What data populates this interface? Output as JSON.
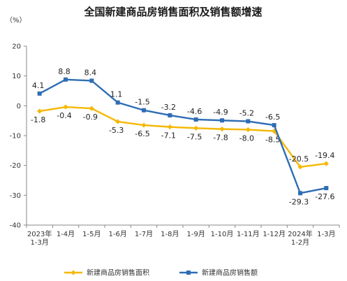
{
  "chart_data": {
    "type": "line",
    "title": "全国新建商品房销售面积及销售额增速",
    "unit_label": "（%）",
    "categories": [
      [
        "2023年",
        "1-3月"
      ],
      [
        "1-4月"
      ],
      [
        "1-5月"
      ],
      [
        "1-6月"
      ],
      [
        "1-7月"
      ],
      [
        "1-8月"
      ],
      [
        "1-9月"
      ],
      [
        "1-10月"
      ],
      [
        "1-11月"
      ],
      [
        "1-12月"
      ],
      [
        "2024年",
        "1-2月"
      ],
      [
        "1-3月"
      ]
    ],
    "ylim": [
      -40,
      20
    ],
    "yticks": [
      20,
      10,
      0,
      -10,
      -20,
      -30,
      -40
    ],
    "ytick_labels": [
      "20",
      "10",
      "0",
      "-10",
      "-20",
      "-30",
      "-40"
    ],
    "grid": false,
    "legend_position": "bottom",
    "series": [
      {
        "name": "新建商品房销售面积",
        "color": "#f5b800",
        "marker": "diamond",
        "values": [
          -1.8,
          -0.4,
          -0.9,
          -5.3,
          -6.5,
          -7.1,
          -7.5,
          -7.8,
          -8.0,
          -8.5,
          -20.5,
          -19.4
        ],
        "labels": [
          "-1.8",
          "-0.4",
          "-0.9",
          "-5.3",
          "-6.5",
          "-7.1",
          "-7.5",
          "-7.8",
          "-8.0",
          "-8.5",
          "-20.5",
          "-19.4"
        ],
        "label_position": [
          "below",
          "below",
          "below",
          "below",
          "below",
          "below",
          "below",
          "below",
          "below",
          "below",
          "above",
          "above"
        ]
      },
      {
        "name": "新建商品房销售额",
        "color": "#2e6db4",
        "marker": "square",
        "values": [
          4.1,
          8.8,
          8.4,
          1.1,
          -1.5,
          -3.2,
          -4.6,
          -4.9,
          -5.2,
          -6.5,
          -29.3,
          -27.6
        ],
        "labels": [
          "4.1",
          "8.8",
          "8.4",
          "1.1",
          "-1.5",
          "-3.2",
          "-4.6",
          "-4.9",
          "-5.2",
          "-6.5",
          "-29.3",
          "-27.6"
        ],
        "label_position": [
          "above",
          "above",
          "above",
          "above",
          "above",
          "above",
          "above",
          "above",
          "above",
          "above",
          "below",
          "below"
        ]
      }
    ]
  }
}
